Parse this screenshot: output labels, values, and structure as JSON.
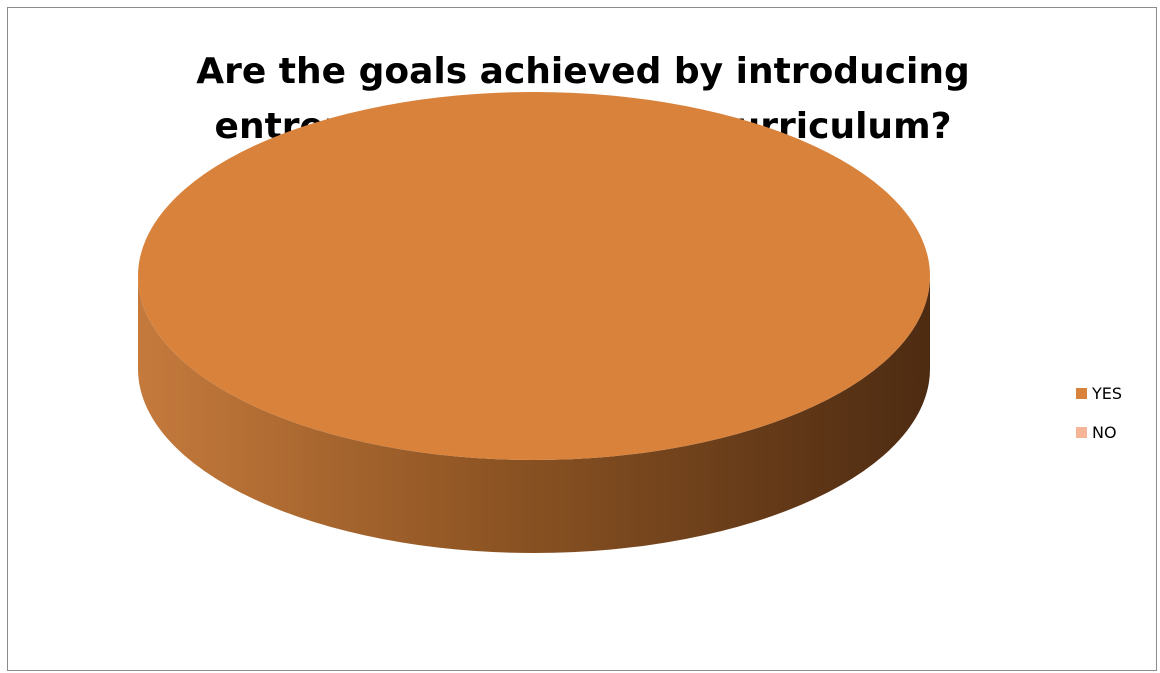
{
  "chart_data": {
    "type": "pie",
    "title_lines": [
      "Are the goals achieved by introducing",
      "entrepreneurship in  the curriculum?"
    ],
    "categories": [
      "YES",
      "NO"
    ],
    "values": [
      100,
      0
    ],
    "colors": [
      "#d9823b",
      "#f5b596"
    ],
    "style": "3d",
    "legend_position": "right"
  }
}
